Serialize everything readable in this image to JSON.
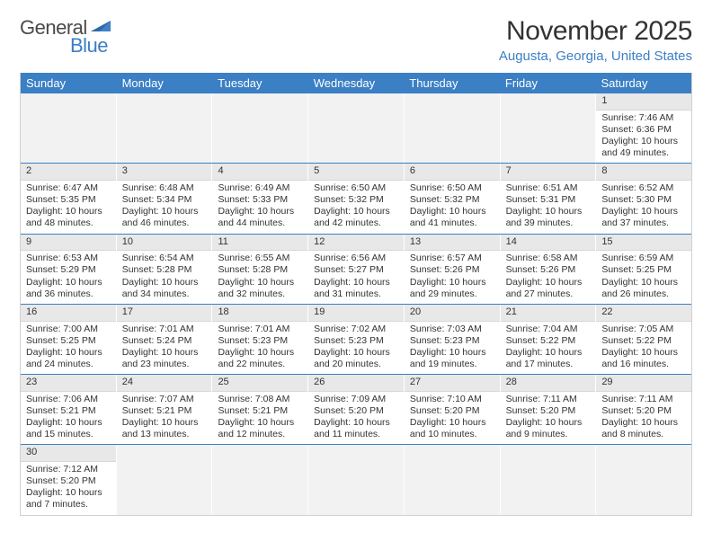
{
  "brand": {
    "part1": "General",
    "part2": "Blue"
  },
  "title": "November 2025",
  "location": "Augusta, Georgia, United States",
  "colors": {
    "header_blue": "#3b7fc4",
    "daynum_bg": "#e8e8e8",
    "empty_bg": "#f2f2f2",
    "text": "#333333",
    "page_bg": "#ffffff"
  },
  "typography": {
    "title_fontsize": 30,
    "location_fontsize": 15,
    "dayheader_fontsize": 13,
    "cell_fontsize": 10.5,
    "logo_fontsize": 22
  },
  "day_headers": [
    "Sunday",
    "Monday",
    "Tuesday",
    "Wednesday",
    "Thursday",
    "Friday",
    "Saturday"
  ],
  "weeks": [
    [
      null,
      null,
      null,
      null,
      null,
      null,
      {
        "n": "1",
        "sunrise": "7:46 AM",
        "sunset": "6:36 PM",
        "dl": "10 hours and 49 minutes."
      }
    ],
    [
      {
        "n": "2",
        "sunrise": "6:47 AM",
        "sunset": "5:35 PM",
        "dl": "10 hours and 48 minutes."
      },
      {
        "n": "3",
        "sunrise": "6:48 AM",
        "sunset": "5:34 PM",
        "dl": "10 hours and 46 minutes."
      },
      {
        "n": "4",
        "sunrise": "6:49 AM",
        "sunset": "5:33 PM",
        "dl": "10 hours and 44 minutes."
      },
      {
        "n": "5",
        "sunrise": "6:50 AM",
        "sunset": "5:32 PM",
        "dl": "10 hours and 42 minutes."
      },
      {
        "n": "6",
        "sunrise": "6:50 AM",
        "sunset": "5:32 PM",
        "dl": "10 hours and 41 minutes."
      },
      {
        "n": "7",
        "sunrise": "6:51 AM",
        "sunset": "5:31 PM",
        "dl": "10 hours and 39 minutes."
      },
      {
        "n": "8",
        "sunrise": "6:52 AM",
        "sunset": "5:30 PM",
        "dl": "10 hours and 37 minutes."
      }
    ],
    [
      {
        "n": "9",
        "sunrise": "6:53 AM",
        "sunset": "5:29 PM",
        "dl": "10 hours and 36 minutes."
      },
      {
        "n": "10",
        "sunrise": "6:54 AM",
        "sunset": "5:28 PM",
        "dl": "10 hours and 34 minutes."
      },
      {
        "n": "11",
        "sunrise": "6:55 AM",
        "sunset": "5:28 PM",
        "dl": "10 hours and 32 minutes."
      },
      {
        "n": "12",
        "sunrise": "6:56 AM",
        "sunset": "5:27 PM",
        "dl": "10 hours and 31 minutes."
      },
      {
        "n": "13",
        "sunrise": "6:57 AM",
        "sunset": "5:26 PM",
        "dl": "10 hours and 29 minutes."
      },
      {
        "n": "14",
        "sunrise": "6:58 AM",
        "sunset": "5:26 PM",
        "dl": "10 hours and 27 minutes."
      },
      {
        "n": "15",
        "sunrise": "6:59 AM",
        "sunset": "5:25 PM",
        "dl": "10 hours and 26 minutes."
      }
    ],
    [
      {
        "n": "16",
        "sunrise": "7:00 AM",
        "sunset": "5:25 PM",
        "dl": "10 hours and 24 minutes."
      },
      {
        "n": "17",
        "sunrise": "7:01 AM",
        "sunset": "5:24 PM",
        "dl": "10 hours and 23 minutes."
      },
      {
        "n": "18",
        "sunrise": "7:01 AM",
        "sunset": "5:23 PM",
        "dl": "10 hours and 22 minutes."
      },
      {
        "n": "19",
        "sunrise": "7:02 AM",
        "sunset": "5:23 PM",
        "dl": "10 hours and 20 minutes."
      },
      {
        "n": "20",
        "sunrise": "7:03 AM",
        "sunset": "5:23 PM",
        "dl": "10 hours and 19 minutes."
      },
      {
        "n": "21",
        "sunrise": "7:04 AM",
        "sunset": "5:22 PM",
        "dl": "10 hours and 17 minutes."
      },
      {
        "n": "22",
        "sunrise": "7:05 AM",
        "sunset": "5:22 PM",
        "dl": "10 hours and 16 minutes."
      }
    ],
    [
      {
        "n": "23",
        "sunrise": "7:06 AM",
        "sunset": "5:21 PM",
        "dl": "10 hours and 15 minutes."
      },
      {
        "n": "24",
        "sunrise": "7:07 AM",
        "sunset": "5:21 PM",
        "dl": "10 hours and 13 minutes."
      },
      {
        "n": "25",
        "sunrise": "7:08 AM",
        "sunset": "5:21 PM",
        "dl": "10 hours and 12 minutes."
      },
      {
        "n": "26",
        "sunrise": "7:09 AM",
        "sunset": "5:20 PM",
        "dl": "10 hours and 11 minutes."
      },
      {
        "n": "27",
        "sunrise": "7:10 AM",
        "sunset": "5:20 PM",
        "dl": "10 hours and 10 minutes."
      },
      {
        "n": "28",
        "sunrise": "7:11 AM",
        "sunset": "5:20 PM",
        "dl": "10 hours and 9 minutes."
      },
      {
        "n": "29",
        "sunrise": "7:11 AM",
        "sunset": "5:20 PM",
        "dl": "10 hours and 8 minutes."
      }
    ],
    [
      {
        "n": "30",
        "sunrise": "7:12 AM",
        "sunset": "5:20 PM",
        "dl": "10 hours and 7 minutes."
      },
      null,
      null,
      null,
      null,
      null,
      null
    ]
  ],
  "labels": {
    "sunrise_prefix": "Sunrise: ",
    "sunset_prefix": "Sunset: ",
    "daylight_prefix": "Daylight: "
  }
}
